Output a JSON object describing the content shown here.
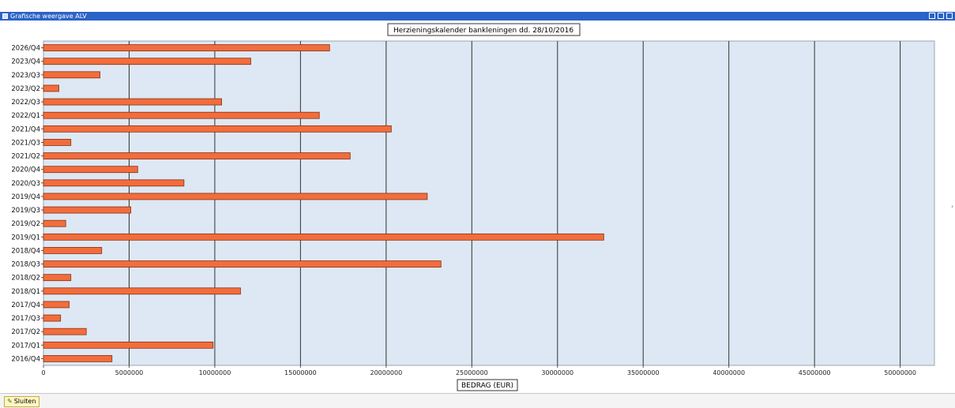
{
  "window": {
    "title": "Grafische weergave ALV",
    "icon": "chart-icon",
    "controls": [
      "minimize-icon",
      "maximize-icon",
      "close-icon"
    ]
  },
  "footer": {
    "close_label": "Sluiten",
    "close_icon": "pencil-icon"
  },
  "colors": {
    "bar_fill": "#f26d3d",
    "bar_stroke": "#8a2f10",
    "plot_background": "#dde8f4",
    "title_bar": "#2b63c7"
  },
  "chart_data": {
    "type": "bar",
    "orientation": "horizontal",
    "title": "Herzieningskalender bankleningen dd. 28/10/2016",
    "xlabel": "BEDRAG (EUR)",
    "ylabel": "",
    "xlim": [
      0,
      52000000
    ],
    "x_ticks": [
      "0",
      "5000000",
      "10000000",
      "15000000",
      "20000000",
      "25000000",
      "30000000",
      "35000000",
      "40000000",
      "45000000",
      "50000000"
    ],
    "grid": "vertical",
    "categories": [
      "2026/Q4",
      "2023/Q4",
      "2023/Q3",
      "2023/Q2",
      "2022/Q3",
      "2022/Q1",
      "2021/Q4",
      "2021/Q3",
      "2021/Q2",
      "2020/Q4",
      "2020/Q3",
      "2019/Q4",
      "2019/Q3",
      "2019/Q2",
      "2019/Q1",
      "2018/Q4",
      "2018/Q3",
      "2018/Q2",
      "2018/Q1",
      "2017/Q4",
      "2017/Q3",
      "2017/Q2",
      "2017/Q1",
      "2016/Q4"
    ],
    "values": [
      16700000,
      12100000,
      3300000,
      900000,
      10400000,
      16100000,
      20300000,
      1600000,
      17900000,
      5500000,
      8200000,
      22400000,
      5100000,
      1300000,
      32700000,
      3400000,
      23200000,
      1600000,
      11500000,
      1500000,
      1000000,
      2500000,
      9900000,
      4000000
    ]
  }
}
